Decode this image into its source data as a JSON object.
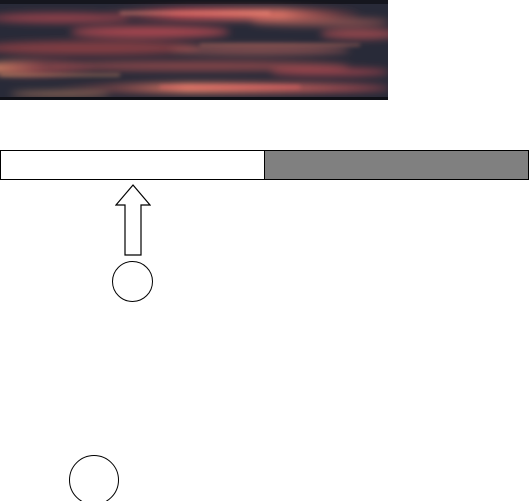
{
  "banner": {
    "icon": "abstract-streaks-image",
    "background_color": "#282a38",
    "streak_colors": [
      "#e8545a",
      "#f07a6a",
      "#c94a4a",
      "#f3a070",
      "#ff8c70"
    ]
  },
  "toggle": {
    "left_segment": {
      "state": "selected",
      "color": "#ffffff"
    },
    "right_segment": {
      "state": "unselected",
      "color": "#808080"
    }
  },
  "pointer": {
    "icon": "up-arrow-icon",
    "color": "#ffffff",
    "stroke": "#000000"
  },
  "targets": [
    {
      "icon": "circle-target",
      "color": "#ffffff"
    },
    {
      "icon": "circle-target",
      "color": "#ffffff"
    }
  ]
}
